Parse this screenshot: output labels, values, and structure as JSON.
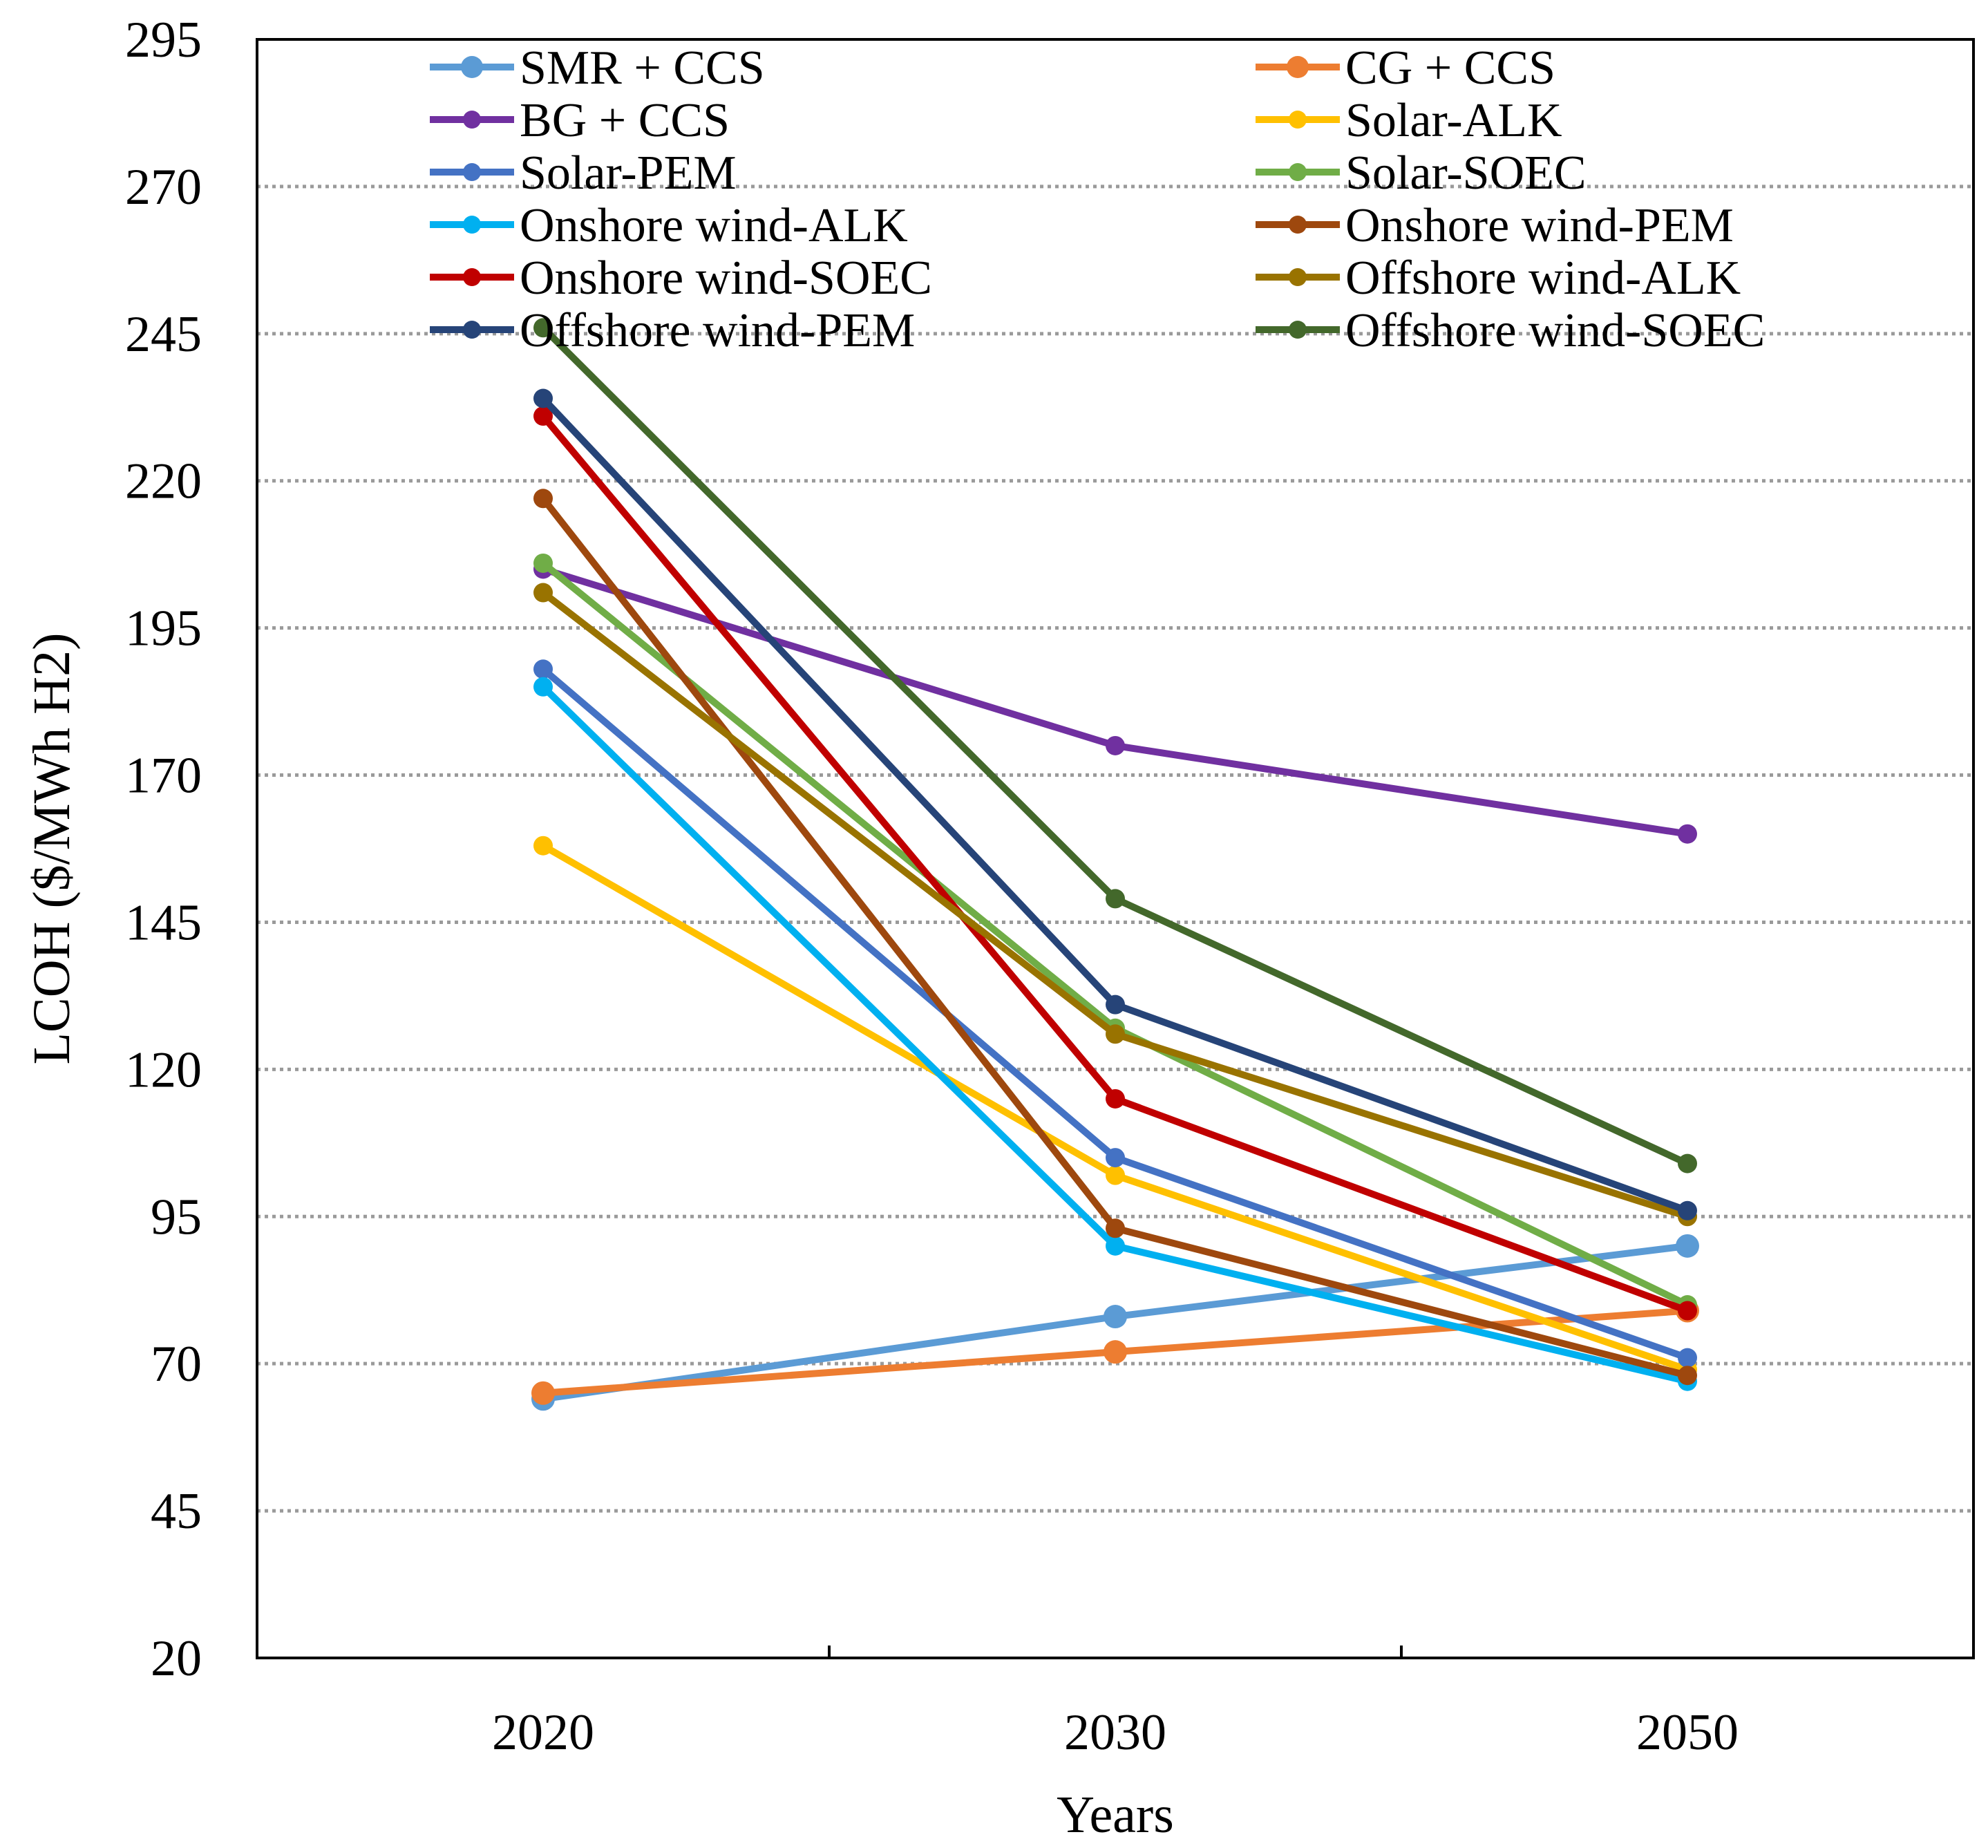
{
  "chart_data": {
    "type": "line",
    "title": "",
    "xlabel": "Years",
    "ylabel": "LCOH ($/MWh H2)",
    "categories": [
      "2020",
      "2030",
      "2050"
    ],
    "ylim": [
      20,
      295
    ],
    "yticks": [
      20,
      45,
      70,
      95,
      120,
      145,
      170,
      195,
      220,
      245,
      270,
      295
    ],
    "grid": true,
    "legend_position": "top",
    "series": [
      {
        "name": "SMR + CCS",
        "color": "#5B9BD5",
        "values": [
          64,
          78,
          90
        ]
      },
      {
        "name": "CG + CCS",
        "color": "#ED7D31",
        "values": [
          65,
          72,
          79
        ]
      },
      {
        "name": "BG + CCS",
        "color": "#7030A0",
        "values": [
          205,
          175,
          160
        ]
      },
      {
        "name": "Solar-ALK",
        "color": "#FFC000",
        "values": [
          158,
          102,
          69
        ]
      },
      {
        "name": "Solar-PEM",
        "color": "#4472C4",
        "values": [
          188,
          105,
          71
        ]
      },
      {
        "name": "Solar-SOEC",
        "color": "#70AD47",
        "values": [
          206,
          127,
          80
        ]
      },
      {
        "name": "Onshore wind-ALK",
        "color": "#00B0F0",
        "values": [
          185,
          90,
          67
        ]
      },
      {
        "name": "Onshore wind-PEM",
        "color": "#9E480E",
        "values": [
          217,
          93,
          68
        ]
      },
      {
        "name": "Onshore wind-SOEC",
        "color": "#C00000",
        "values": [
          231,
          115,
          79
        ]
      },
      {
        "name": "Offshore wind-ALK",
        "color": "#997300",
        "values": [
          201,
          126,
          95
        ]
      },
      {
        "name": "Offshore wind-PEM",
        "color": "#264478",
        "values": [
          234,
          131,
          96
        ]
      },
      {
        "name": "Offshore wind-SOEC",
        "color": "#43682B",
        "values": [
          246,
          149,
          104
        ]
      }
    ]
  }
}
